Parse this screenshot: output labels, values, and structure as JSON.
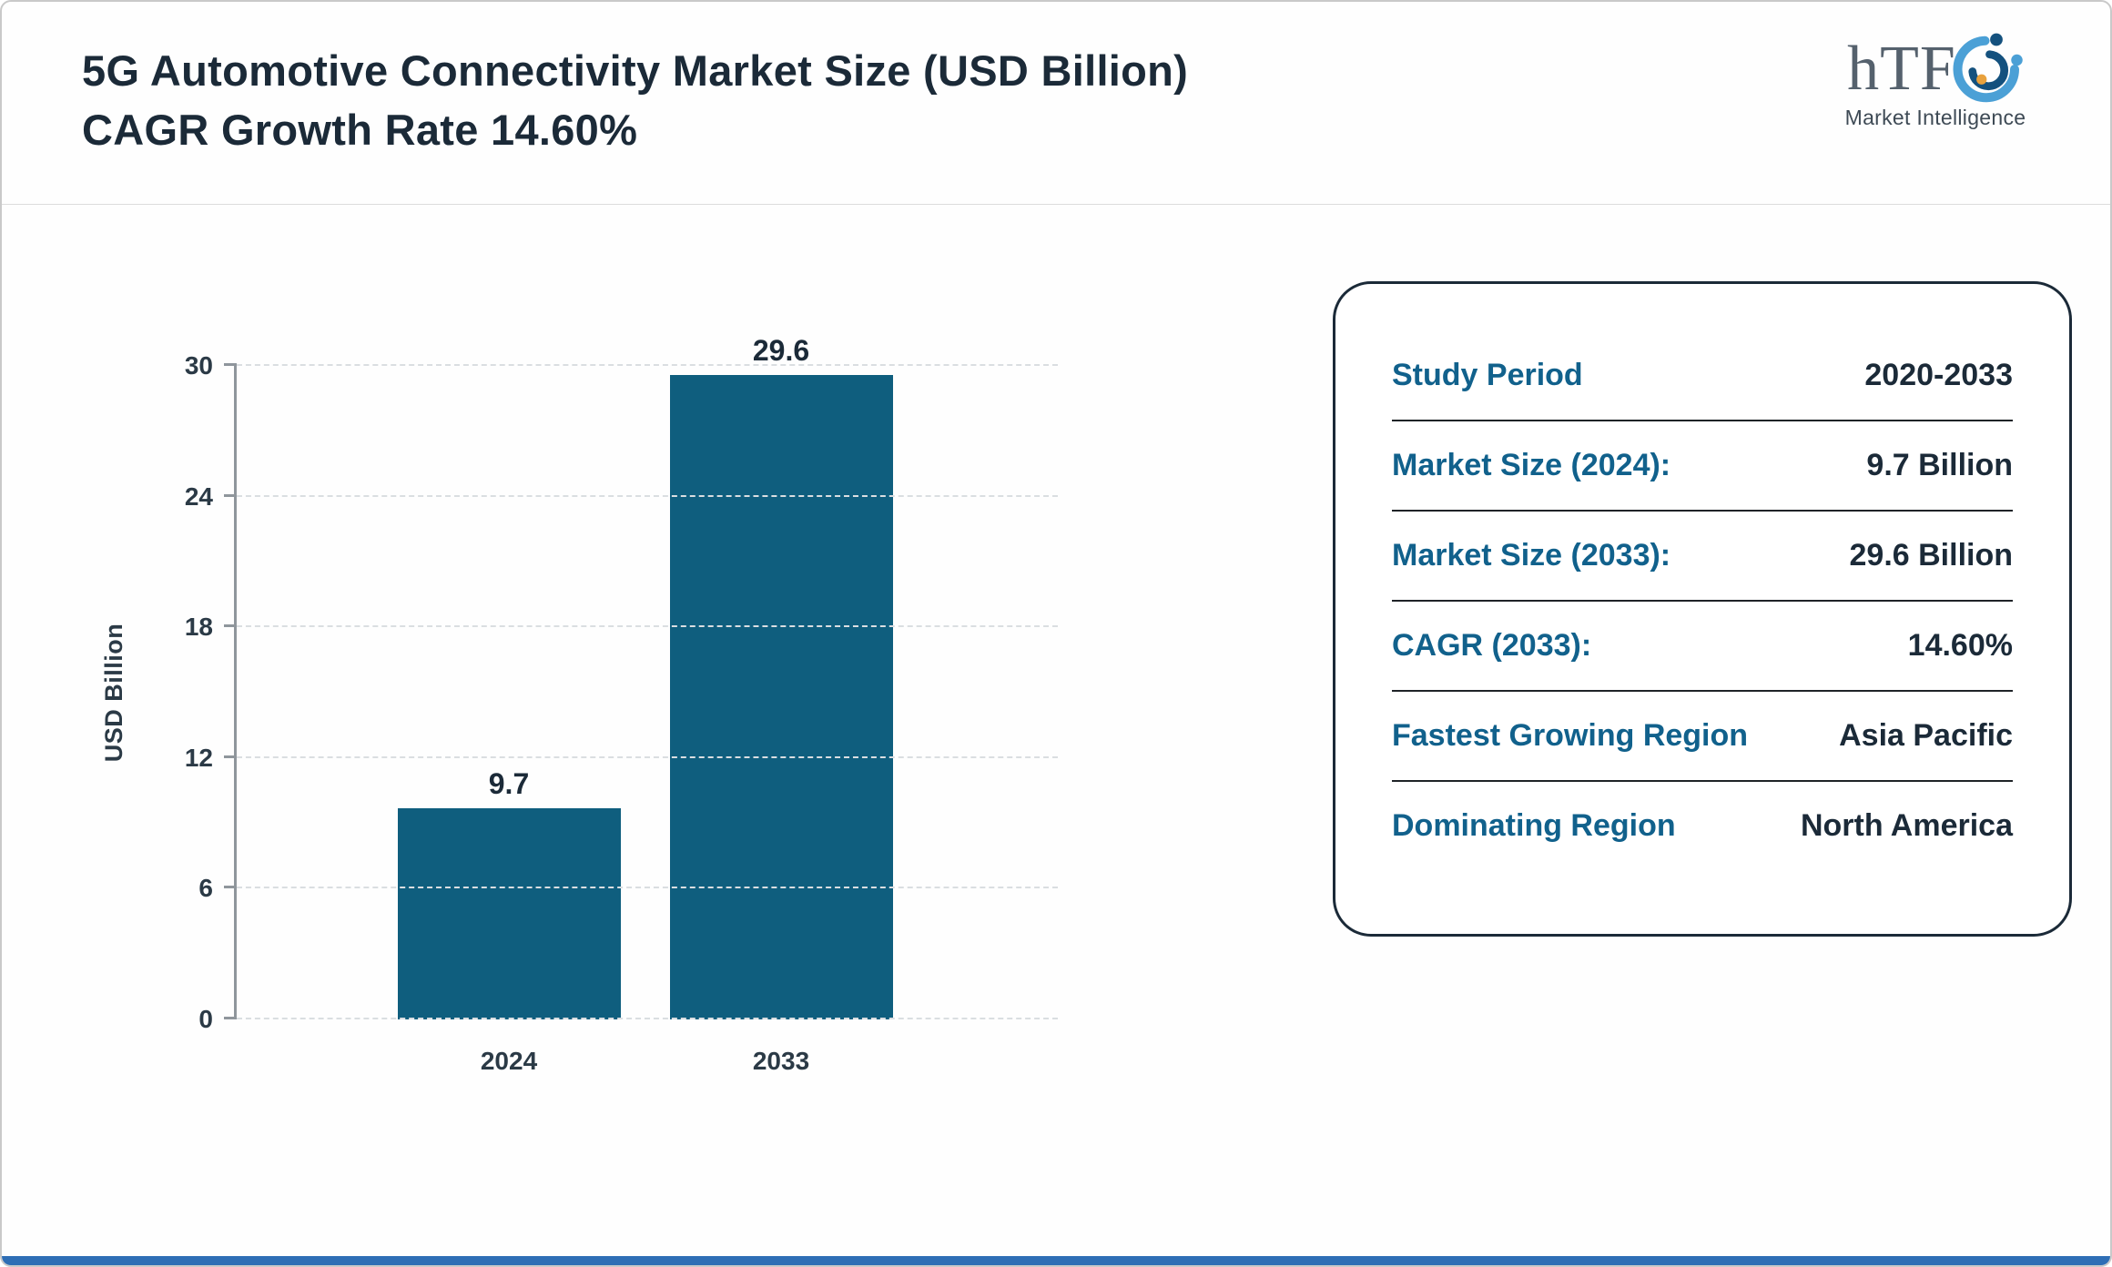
{
  "header": {
    "title": "5G Automotive Connectivity Market Size (USD Billion) CAGR Growth Rate 14.60%",
    "logo": {
      "text": "hTF",
      "subtitle": "Market Intelligence"
    }
  },
  "chart_data": {
    "type": "bar",
    "categories": [
      "2024",
      "2033"
    ],
    "values": [
      9.7,
      29.6
    ],
    "labels": [
      "9.7",
      "29.6"
    ],
    "title": "",
    "xlabel": "",
    "ylabel": "USD Billion",
    "ylim": [
      0,
      30
    ],
    "yticks": [
      0,
      6,
      12,
      18,
      24,
      30
    ],
    "grid": "dashed-horizontal",
    "legend": "none",
    "bar_color": "#0f5e7e"
  },
  "info_card": {
    "rows": [
      {
        "label": "Study Period",
        "value": "2020-2033"
      },
      {
        "label": "Market Size (2024):",
        "value": "9.7 Billion"
      },
      {
        "label": "Market Size (2033):",
        "value": "29.6 Billion"
      },
      {
        "label": "CAGR (2033):",
        "value": "14.60%"
      },
      {
        "label": "Fastest Growing Region",
        "value": "Asia Pacific"
      },
      {
        "label": "Dominating Region",
        "value": "North America"
      }
    ]
  },
  "colors": {
    "bar": "#0f5e7e",
    "accent_label": "#11618c",
    "dark_text": "#1b2a38",
    "bottom_strip": "#2e6eb5"
  }
}
